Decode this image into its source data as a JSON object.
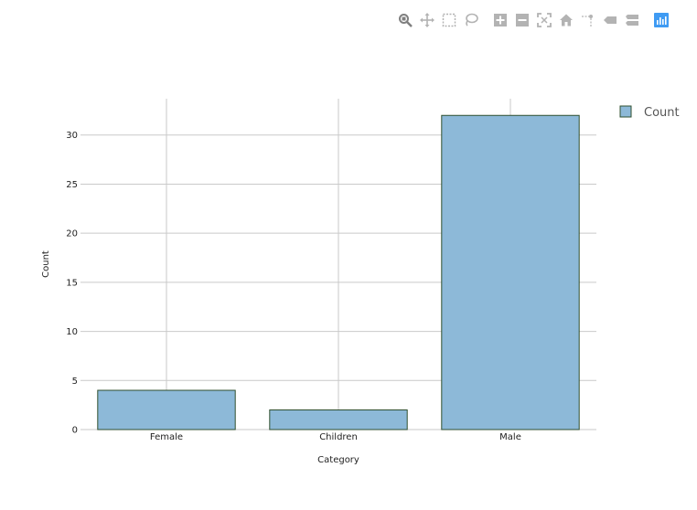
{
  "toolbar": {
    "buttons": [
      {
        "name": "zoom-icon",
        "title": "Zoom",
        "active": true
      },
      {
        "name": "pan-icon",
        "title": "Pan"
      },
      {
        "name": "box-select-icon",
        "title": "Box Select"
      },
      {
        "name": "lasso-select-icon",
        "title": "Lasso Select"
      },
      {
        "name": "zoom-in-icon",
        "title": "Zoom in"
      },
      {
        "name": "zoom-out-icon",
        "title": "Zoom out"
      },
      {
        "name": "autoscale-icon",
        "title": "Autoscale"
      },
      {
        "name": "reset-axes-icon",
        "title": "Reset axes"
      },
      {
        "name": "spike-lines-icon",
        "title": "Toggle Spike Lines"
      },
      {
        "name": "hover-closest-icon",
        "title": "Show closest data on hover"
      },
      {
        "name": "hover-compare-icon",
        "title": "Compare data on hover"
      },
      {
        "name": "plotly-logo-icon",
        "title": "Produced with Plotly"
      }
    ],
    "icon_color": "#b3b3b3",
    "active_color": "#7f7f7f",
    "brand_color": "#3f9bf3"
  },
  "chart_data": {
    "type": "bar",
    "categories": [
      "Female",
      "Children",
      "Male"
    ],
    "series": [
      {
        "name": "Count",
        "values": [
          4,
          2,
          32
        ],
        "color": "#8db9d8",
        "edge_color": "#2f4f2f"
      }
    ],
    "title": "",
    "xlabel": "Category",
    "ylabel": "Count",
    "ylim": [
      0,
      33.7
    ],
    "yticks": [
      0,
      5,
      10,
      15,
      20,
      25,
      30
    ],
    "grid": true,
    "legend": "top-right"
  }
}
